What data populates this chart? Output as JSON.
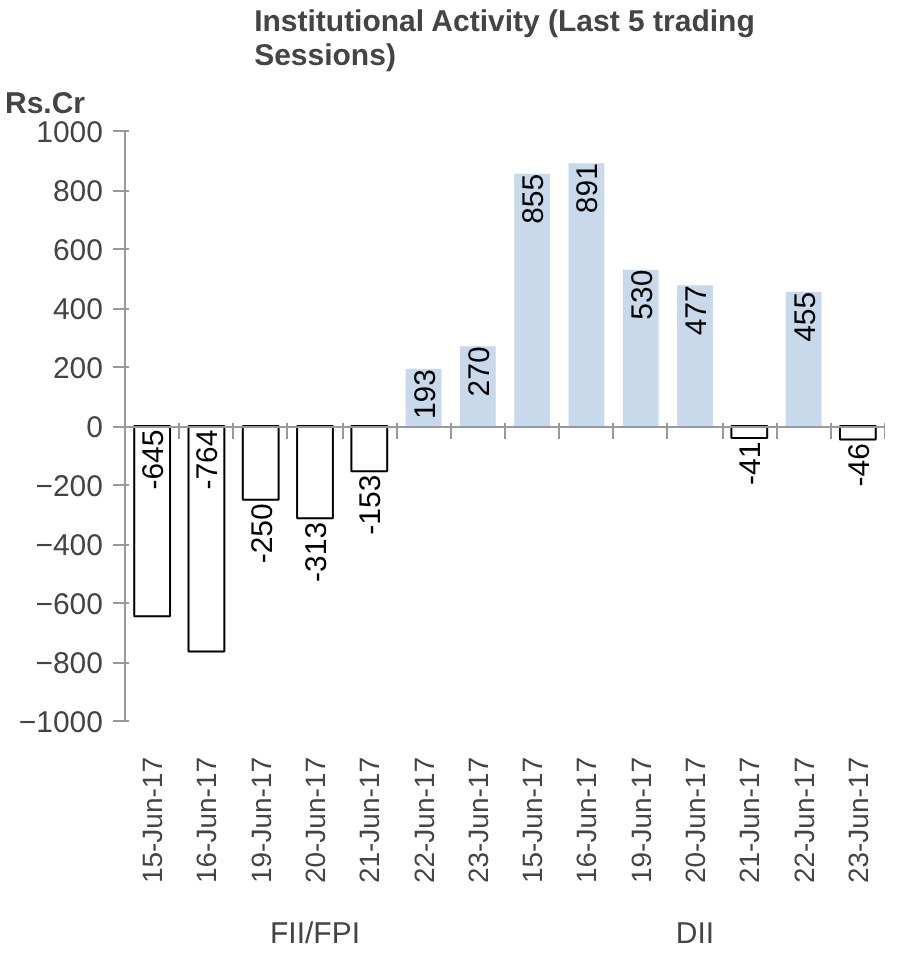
{
  "chart_data": {
    "type": "bar",
    "title": "Institutional Activity (Last 5 trading Sessions)",
    "ylabel": "Rs.Cr",
    "categories": [
      "15-Jun-17",
      "16-Jun-17",
      "19-Jun-17",
      "20-Jun-17",
      "21-Jun-17",
      "22-Jun-17",
      "23-Jun-17",
      "15-Jun-17",
      "16-Jun-17",
      "19-Jun-17",
      "20-Jun-17",
      "21-Jun-17",
      "22-Jun-17",
      "23-Jun-17"
    ],
    "values": [
      -645,
      -764,
      -250,
      -313,
      -153,
      193,
      270,
      855,
      891,
      530,
      477,
      -41,
      455,
      -46
    ],
    "colors": [
      "#ffffff",
      "#ffffff",
      "#ffffff",
      "#ffffff",
      "#ffffff",
      "#c9d9ec",
      "#c9d9ec",
      "#c9d9ec",
      "#c9d9ec",
      "#c9d9ec",
      "#c9d9ec",
      "#ffffff",
      "#c9d9ec",
      "#ffffff"
    ],
    "annotations": [
      "FII/FPI",
      "DII"
    ],
    "ylim": [
      -1000,
      1000
    ],
    "yticks": [
      -1000,
      -800,
      -600,
      -400,
      -200,
      0,
      200,
      400,
      600,
      800,
      1000
    ],
    "data_labels": true
  }
}
